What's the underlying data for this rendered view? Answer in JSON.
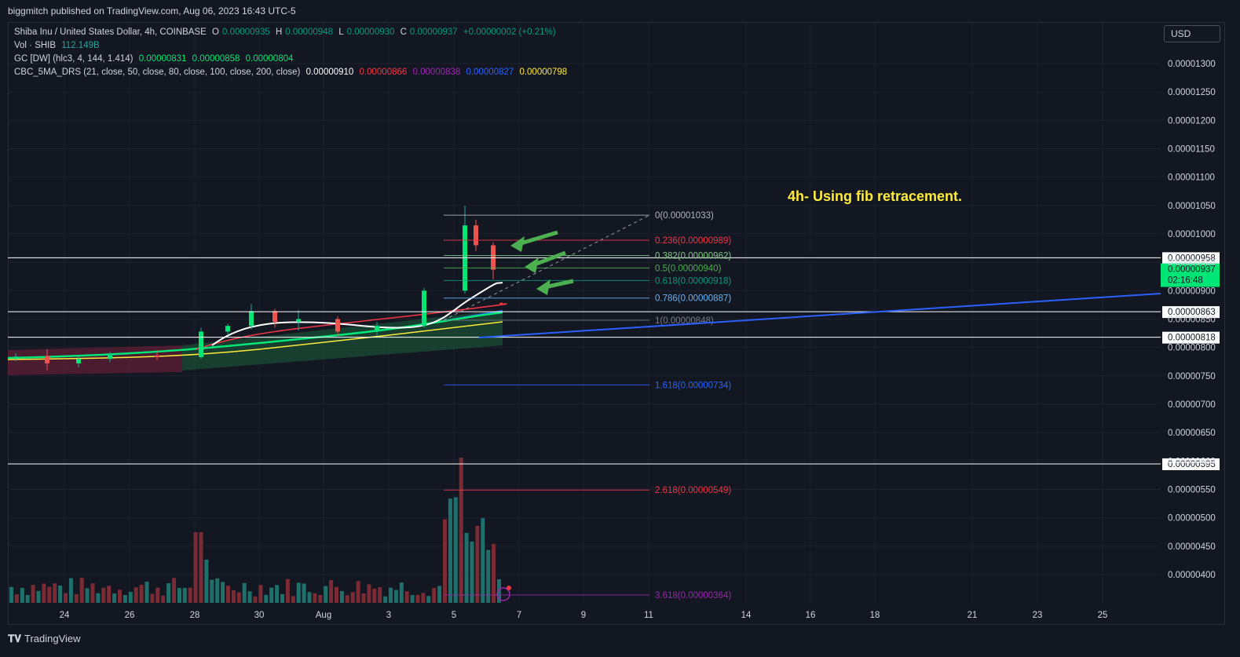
{
  "header": {
    "published": "biggmitch published on TradingView.com, Aug 06, 2023 16:43 UTC-5"
  },
  "legend": {
    "symbol": "Shiba Inu / United States Dollar, 4h, COINBASE",
    "o_label": "O",
    "o_value": "0.00000935",
    "h_label": "H",
    "h_value": "0.00000948",
    "l_label": "L",
    "l_value": "0.00000930",
    "c_label": "C",
    "c_value": "0.00000937",
    "change": "+0.00000002 (+0.21%)",
    "vol_label": "Vol · SHIB",
    "vol_value": "112.149B",
    "gc_label": "GC [DW] (hlc3, 4, 144, 1.414)",
    "gc_values": [
      "0.00000831",
      "0.00000858",
      "0.00000804"
    ],
    "ma_label": "CBC_5MA_DRS (21, close, 50, close, 80, close, 100, close, 200, close)",
    "ma_values": [
      "0.00000910",
      "0.00000866",
      "0.00000838",
      "0.00000827",
      "0.00000798"
    ],
    "ma_colors": [
      "#ffffff",
      "#f23645",
      "#9c27b0",
      "#2962ff",
      "#ffeb3b"
    ]
  },
  "toolbar": {
    "currency": "USD"
  },
  "annotation": {
    "text": "4h- Using fib retracement."
  },
  "price_scale": {
    "ticks": [
      "0.00001300",
      "0.00001250",
      "0.00001200",
      "0.00001150",
      "0.00001100",
      "0.00001050",
      "0.00001000",
      "0.00000950",
      "0.00000900",
      "0.00000850",
      "0.00000800",
      "0.00000750",
      "0.00000700",
      "0.00000650",
      "0.00000600",
      "0.00000550",
      "0.00000500",
      "0.00000450",
      "0.00000400"
    ],
    "current_price": "0.00000937",
    "countdown": "02:16:48",
    "hline_labels": [
      "0.00000958",
      "0.00000863",
      "0.00000818",
      "0.00000595"
    ]
  },
  "time_scale": {
    "ticks": [
      "24",
      "26",
      "28",
      "30",
      "Aug",
      "3",
      "5",
      "7",
      "9",
      "11",
      "14",
      "16",
      "18",
      "21",
      "23",
      "25"
    ]
  },
  "fib_levels": [
    {
      "label": "0(0.00001033)",
      "color": "#b2b5be"
    },
    {
      "label": "0.236(0.00000989)",
      "color": "#f23645"
    },
    {
      "label": "0.382(0.00000962)",
      "color": "#81c784"
    },
    {
      "label": "0.5(0.00000940)",
      "color": "#4caf50"
    },
    {
      "label": "0.618(0.00000918)",
      "color": "#089981"
    },
    {
      "label": "0.786(0.00000887)",
      "color": "#64b5f6"
    },
    {
      "label": "1(0.00000848)",
      "color": "#787b86"
    },
    {
      "label": "1.618(0.00000734)",
      "color": "#2962ff"
    },
    {
      "label": "2.618(0.00000549)",
      "color": "#f23645"
    },
    {
      "label": "3.618(0.00000364)",
      "color": "#9c27b0"
    }
  ],
  "footer": {
    "brand": "TradingView"
  },
  "chart_data": {
    "type": "candlestick",
    "symbol": "SHIB/USD",
    "timeframe": "4h",
    "x_range": [
      "Jul 22",
      "Aug 27"
    ],
    "ylim": [
      3.7e-06,
      1.34e-05
    ],
    "current": {
      "o": 9.35e-06,
      "h": 9.48e-06,
      "l": 9.3e-06,
      "c": 9.37e-06
    },
    "horizontal_lines": [
      9.58e-06,
      8.63e-06,
      8.18e-06,
      5.95e-06
    ],
    "fib_retracement": [
      {
        "ratio": 0,
        "price": 1.033e-05
      },
      {
        "ratio": 0.236,
        "price": 9.89e-06
      },
      {
        "ratio": 0.382,
        "price": 9.62e-06
      },
      {
        "ratio": 0.5,
        "price": 9.4e-06
      },
      {
        "ratio": 0.618,
        "price": 9.18e-06
      },
      {
        "ratio": 0.786,
        "price": 8.87e-06
      },
      {
        "ratio": 1,
        "price": 8.48e-06
      },
      {
        "ratio": 1.618,
        "price": 7.34e-06
      },
      {
        "ratio": 2.618,
        "price": 5.49e-06
      },
      {
        "ratio": 3.618,
        "price": 3.64e-06
      }
    ],
    "candles": [
      {
        "t": "Jul 23",
        "o": 7.82e-06,
        "h": 7.9e-06,
        "l": 7.76e-06,
        "c": 7.84e-06
      },
      {
        "t": "Jul 24",
        "o": 7.85e-06,
        "h": 7.97e-06,
        "l": 7.6e-06,
        "c": 7.72e-06
      },
      {
        "t": "Jul 25",
        "o": 7.72e-06,
        "h": 7.85e-06,
        "l": 7.65e-06,
        "c": 7.8e-06
      },
      {
        "t": "Jul 26",
        "o": 7.8e-06,
        "h": 7.92e-06,
        "l": 7.74e-06,
        "c": 7.86e-06
      },
      {
        "t": "Jul 27",
        "o": 7.86e-06,
        "h": 7.95e-06,
        "l": 7.78e-06,
        "c": 7.83e-06
      },
      {
        "t": "Jul 28",
        "o": 7.83e-06,
        "h": 8.35e-06,
        "l": 7.8e-06,
        "c": 8.28e-06
      },
      {
        "t": "Jul 29",
        "o": 8.28e-06,
        "h": 8.42e-06,
        "l": 8.22e-06,
        "c": 8.38e-06
      },
      {
        "t": "Jul 30",
        "o": 8.38e-06,
        "h": 8.77e-06,
        "l": 8.32e-06,
        "c": 8.64e-06
      },
      {
        "t": "Jul 31",
        "o": 8.64e-06,
        "h": 8.68e-06,
        "l": 8.35e-06,
        "c": 8.45e-06
      },
      {
        "t": "Aug 1",
        "o": 8.45e-06,
        "h": 8.66e-06,
        "l": 8.3e-06,
        "c": 8.5e-06
      },
      {
        "t": "Aug 2",
        "o": 8.5e-06,
        "h": 8.55e-06,
        "l": 8.2e-06,
        "c": 8.28e-06
      },
      {
        "t": "Aug 3",
        "o": 8.28e-06,
        "h": 8.45e-06,
        "l": 8.2e-06,
        "c": 8.38e-06
      },
      {
        "t": "Aug 4",
        "o": 8.38e-06,
        "h": 9.05e-06,
        "l": 8.35e-06,
        "c": 9e-06
      },
      {
        "t": "Aug 5",
        "o": 9e-06,
        "h": 1.05e-05,
        "l": 8.95e-06,
        "c": 1.015e-05
      },
      {
        "t": "Aug 5b",
        "o": 1.015e-05,
        "h": 1.025e-05,
        "l": 9.7e-06,
        "c": 9.8e-06
      },
      {
        "t": "Aug 6",
        "o": 9.8e-06,
        "h": 9.85e-06,
        "l": 9.2e-06,
        "c": 9.37e-06
      }
    ],
    "volume_series": {
      "name": "Vol · SHIB",
      "last": "112.149B"
    },
    "indicators": [
      {
        "name": "GC [DW]",
        "values": [
          8.31e-06,
          8.58e-06,
          8.04e-06
        ]
      },
      {
        "name": "CBC_5MA_DRS",
        "values": [
          9.1e-06,
          8.66e-06,
          8.38e-06,
          8.27e-06,
          7.98e-06
        ]
      }
    ]
  }
}
